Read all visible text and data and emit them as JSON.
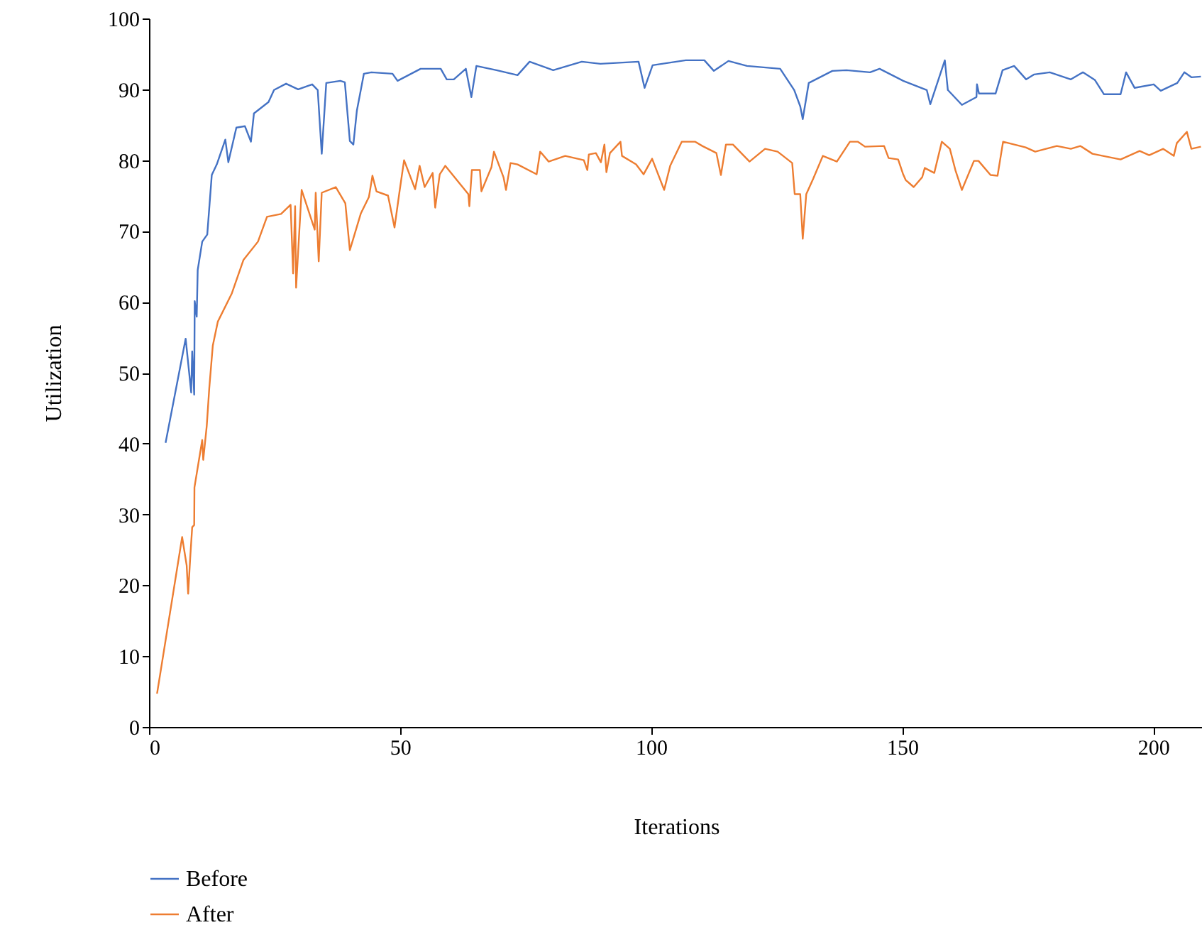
{
  "chart_data": {
    "type": "line",
    "xlabel": "Iterations",
    "ylabel": "Utilization",
    "xlim": [
      0,
      210
    ],
    "xticks": [
      0,
      50,
      100,
      150,
      200
    ],
    "ylim": [
      0,
      100
    ],
    "yticks": [
      0,
      10,
      20,
      30,
      40,
      50,
      60,
      70,
      80,
      90,
      100
    ],
    "grid": false,
    "legend": "bottom",
    "marker": "none",
    "line_style": "solid",
    "series": [
      {
        "name": "Before",
        "color": "#4472c4",
        "x": [
          3.3,
          7.3,
          8.4,
          8.6,
          9.0,
          9.1,
          9.5,
          9.7,
          10.6,
          11.6,
          12.5,
          13.5,
          15.2,
          15.8,
          17.4,
          19.1,
          20.3,
          20.9,
          23.8,
          24.9,
          27.3,
          29.7,
          32.5,
          33.6,
          34.4,
          35.3,
          38.1,
          39.0,
          40.0,
          40.7,
          41.4,
          42.8,
          44.3,
          48.5,
          49.5,
          54.1,
          58.1,
          59.3,
          60.7,
          63.1,
          64.2,
          65.2,
          69.2,
          73.4,
          75.8,
          80.5,
          86.2,
          89.9,
          97.5,
          98.7,
          100.3,
          106.9,
          110.6,
          112.5,
          115.4,
          119.1,
          125.7,
          128.5,
          129.7,
          130.2,
          131.4,
          136.1,
          138.9,
          143.6,
          145.5,
          150.2,
          154.9,
          155.6,
          158.5,
          159.1,
          161.9,
          164.8,
          164.9,
          165.3,
          168.6,
          170.0,
          172.3,
          174.7,
          176.3,
          179.4,
          183.6,
          186.0,
          188.4,
          190.2,
          193.5,
          194.6,
          196.3,
          200.1,
          201.5,
          204.8,
          206.2,
          207.6,
          209.5
        ],
        "values": [
          40.1,
          54.8,
          47.2,
          53,
          46.9,
          60.1,
          57.9,
          64.5,
          68.5,
          69.5,
          77.9,
          79.4,
          82.9,
          79.7,
          84.6,
          84.8,
          82.6,
          86.6,
          88.2,
          89.9,
          90.8,
          90.0,
          90.7,
          89.9,
          80.9,
          90.9,
          91.2,
          91,
          82.7,
          82.2,
          87,
          92.2,
          92.4,
          92.2,
          91.2,
          92.9,
          92.9,
          91.4,
          91.4,
          92.9,
          88.9,
          93.3,
          92.7,
          92.0,
          93.9,
          92.7,
          93.9,
          93.6,
          93.9,
          90.2,
          93.4,
          94.1,
          94.1,
          92.6,
          94,
          93.3,
          92.9,
          89.9,
          87.6,
          85.8,
          90.9,
          92.6,
          92.7,
          92.4,
          92.9,
          91.2,
          89.9,
          87.9,
          94.1,
          89.9,
          87.8,
          88.9,
          90.7,
          89.4,
          89.4,
          92.7,
          93.3,
          91.4,
          92.1,
          92.4,
          91.4,
          92.4,
          91.3,
          89.3,
          89.3,
          92.4,
          90.2,
          90.7,
          89.8,
          90.9,
          92.4,
          91.7,
          91.8
        ]
      },
      {
        "name": "After",
        "color": "#ed7d31",
        "x": [
          1.6,
          6.6,
          7.5,
          7.8,
          8.2,
          8.6,
          9.0,
          9.05,
          10.6,
          10.8,
          11.5,
          12.0,
          12.7,
          13.7,
          16.5,
          18.8,
          21.7,
          23.5,
          26.3,
          28.2,
          28.7,
          29.1,
          29.3,
          30.4,
          33.0,
          33.2,
          33.8,
          34.4,
          37.2,
          39.1,
          40.0,
          42.2,
          43.8,
          44.5,
          45.3,
          47.6,
          48.9,
          49.9,
          50.8,
          53.0,
          53.9,
          54.9,
          56.5,
          57.0,
          57.9,
          59.0,
          63.6,
          63.8,
          64.3,
          65.9,
          66.2,
          68.2,
          68.7,
          70.6,
          71.1,
          72.0,
          73.4,
          77.2,
          77.9,
          79.6,
          82.9,
          86.6,
          87.3,
          87.6,
          89.0,
          90.0,
          90.7,
          91.1,
          91.8,
          93.9,
          94.2,
          97.0,
          98.5,
          100.2,
          102.6,
          103.8,
          106.1,
          108.8,
          110.2,
          113.0,
          113.9,
          114.9,
          116.3,
          119.6,
          122.7,
          125.2,
          128.1,
          128.6,
          129.7,
          130.2,
          130.9,
          132.3,
          134.2,
          137.0,
          139.6,
          141.2,
          142.6,
          146.4,
          147.3,
          149.2,
          150.2,
          150.7,
          152.3,
          154.0,
          154.5,
          156.4,
          157.9,
          159.5,
          160.6,
          161.9,
          164.3,
          165.2,
          167.6,
          169.0,
          170.1,
          174.6,
          176.5,
          180.8,
          183.6,
          185.5,
          187.9,
          193.5,
          197.3,
          199.2,
          202.0,
          204.1,
          204.7,
          206.7,
          207.6,
          209.5
        ],
        "values": [
          4.7,
          26.8,
          22.8,
          18.8,
          23.8,
          28.2,
          28.5,
          33.8,
          40.5,
          37.7,
          42.5,
          47.8,
          53.8,
          57.2,
          61.2,
          65.9,
          68.5,
          72,
          72.4,
          73.7,
          64,
          73.5,
          62,
          75.8,
          70.2,
          75.4,
          65.7,
          75.4,
          76.2,
          73.9,
          67.3,
          72.5,
          74.8,
          77.8,
          75.6,
          75,
          70.5,
          75.6,
          80,
          75.9,
          79.2,
          76.2,
          78.2,
          73.3,
          78,
          79.2,
          75.2,
          73.5,
          78.6,
          78.6,
          75.6,
          79.0,
          81.2,
          77.6,
          75.8,
          79.6,
          79.4,
          78.0,
          81.2,
          79.8,
          80.6,
          80.0,
          78.6,
          80.8,
          81,
          79.7,
          82.2,
          78.3,
          81,
          82.6,
          80.6,
          79.4,
          78,
          80.2,
          75.8,
          79.2,
          82.6,
          82.6,
          82.0,
          81,
          77.9,
          82.2,
          82.2,
          79.8,
          81.6,
          81.2,
          79.6,
          75.2,
          75.2,
          68.9,
          75.2,
          77.4,
          80.6,
          79.8,
          82.6,
          82.6,
          81.9,
          82.0,
          80.3,
          80.1,
          78.0,
          77.2,
          76.2,
          77.6,
          78.9,
          78.2,
          82.6,
          81.6,
          78.6,
          75.8,
          79.9,
          79.9,
          77.9,
          77.8,
          82.6,
          81.8,
          81.2,
          82.0,
          81.6,
          82.0,
          80.9,
          80.1,
          81.3,
          80.7,
          81.6,
          80.6,
          82.4,
          84.0,
          81.6,
          81.9
        ]
      }
    ]
  }
}
